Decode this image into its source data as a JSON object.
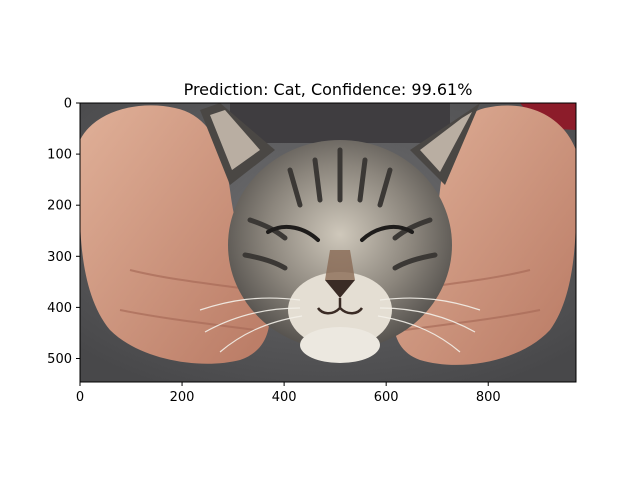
{
  "figure": {
    "background": "#ffffff"
  },
  "chart_data": {
    "type": "image",
    "title": "Prediction: Cat, Confidence: 99.61%",
    "image_subject": "tabby kitten held by two hands",
    "image_extent": {
      "x": [
        0,
        972
      ],
      "y": [
        546,
        0
      ]
    },
    "xlim": [
      0,
      972
    ],
    "ylim": [
      546,
      0
    ],
    "y_inverted": true,
    "x_ticks": [
      0,
      200,
      400,
      600,
      800
    ],
    "y_ticks": [
      0,
      100,
      200,
      300,
      400,
      500
    ],
    "x_tick_labels": [
      "0",
      "200",
      "400",
      "600",
      "800"
    ],
    "y_tick_labels": [
      "0",
      "100",
      "200",
      "300",
      "400",
      "500"
    ],
    "grid": false,
    "legend": "none",
    "palette": {
      "background": "#5b5b5d",
      "skin": "#cf9a82",
      "skin_shadow": "#a86b58",
      "fur_dark": "#4a4744",
      "fur_mid": "#8b857c",
      "fur_light": "#d8d2c7",
      "nose": "#8a6a55",
      "red_sleeve": "#8c1c2a",
      "axis": "#000000"
    }
  }
}
